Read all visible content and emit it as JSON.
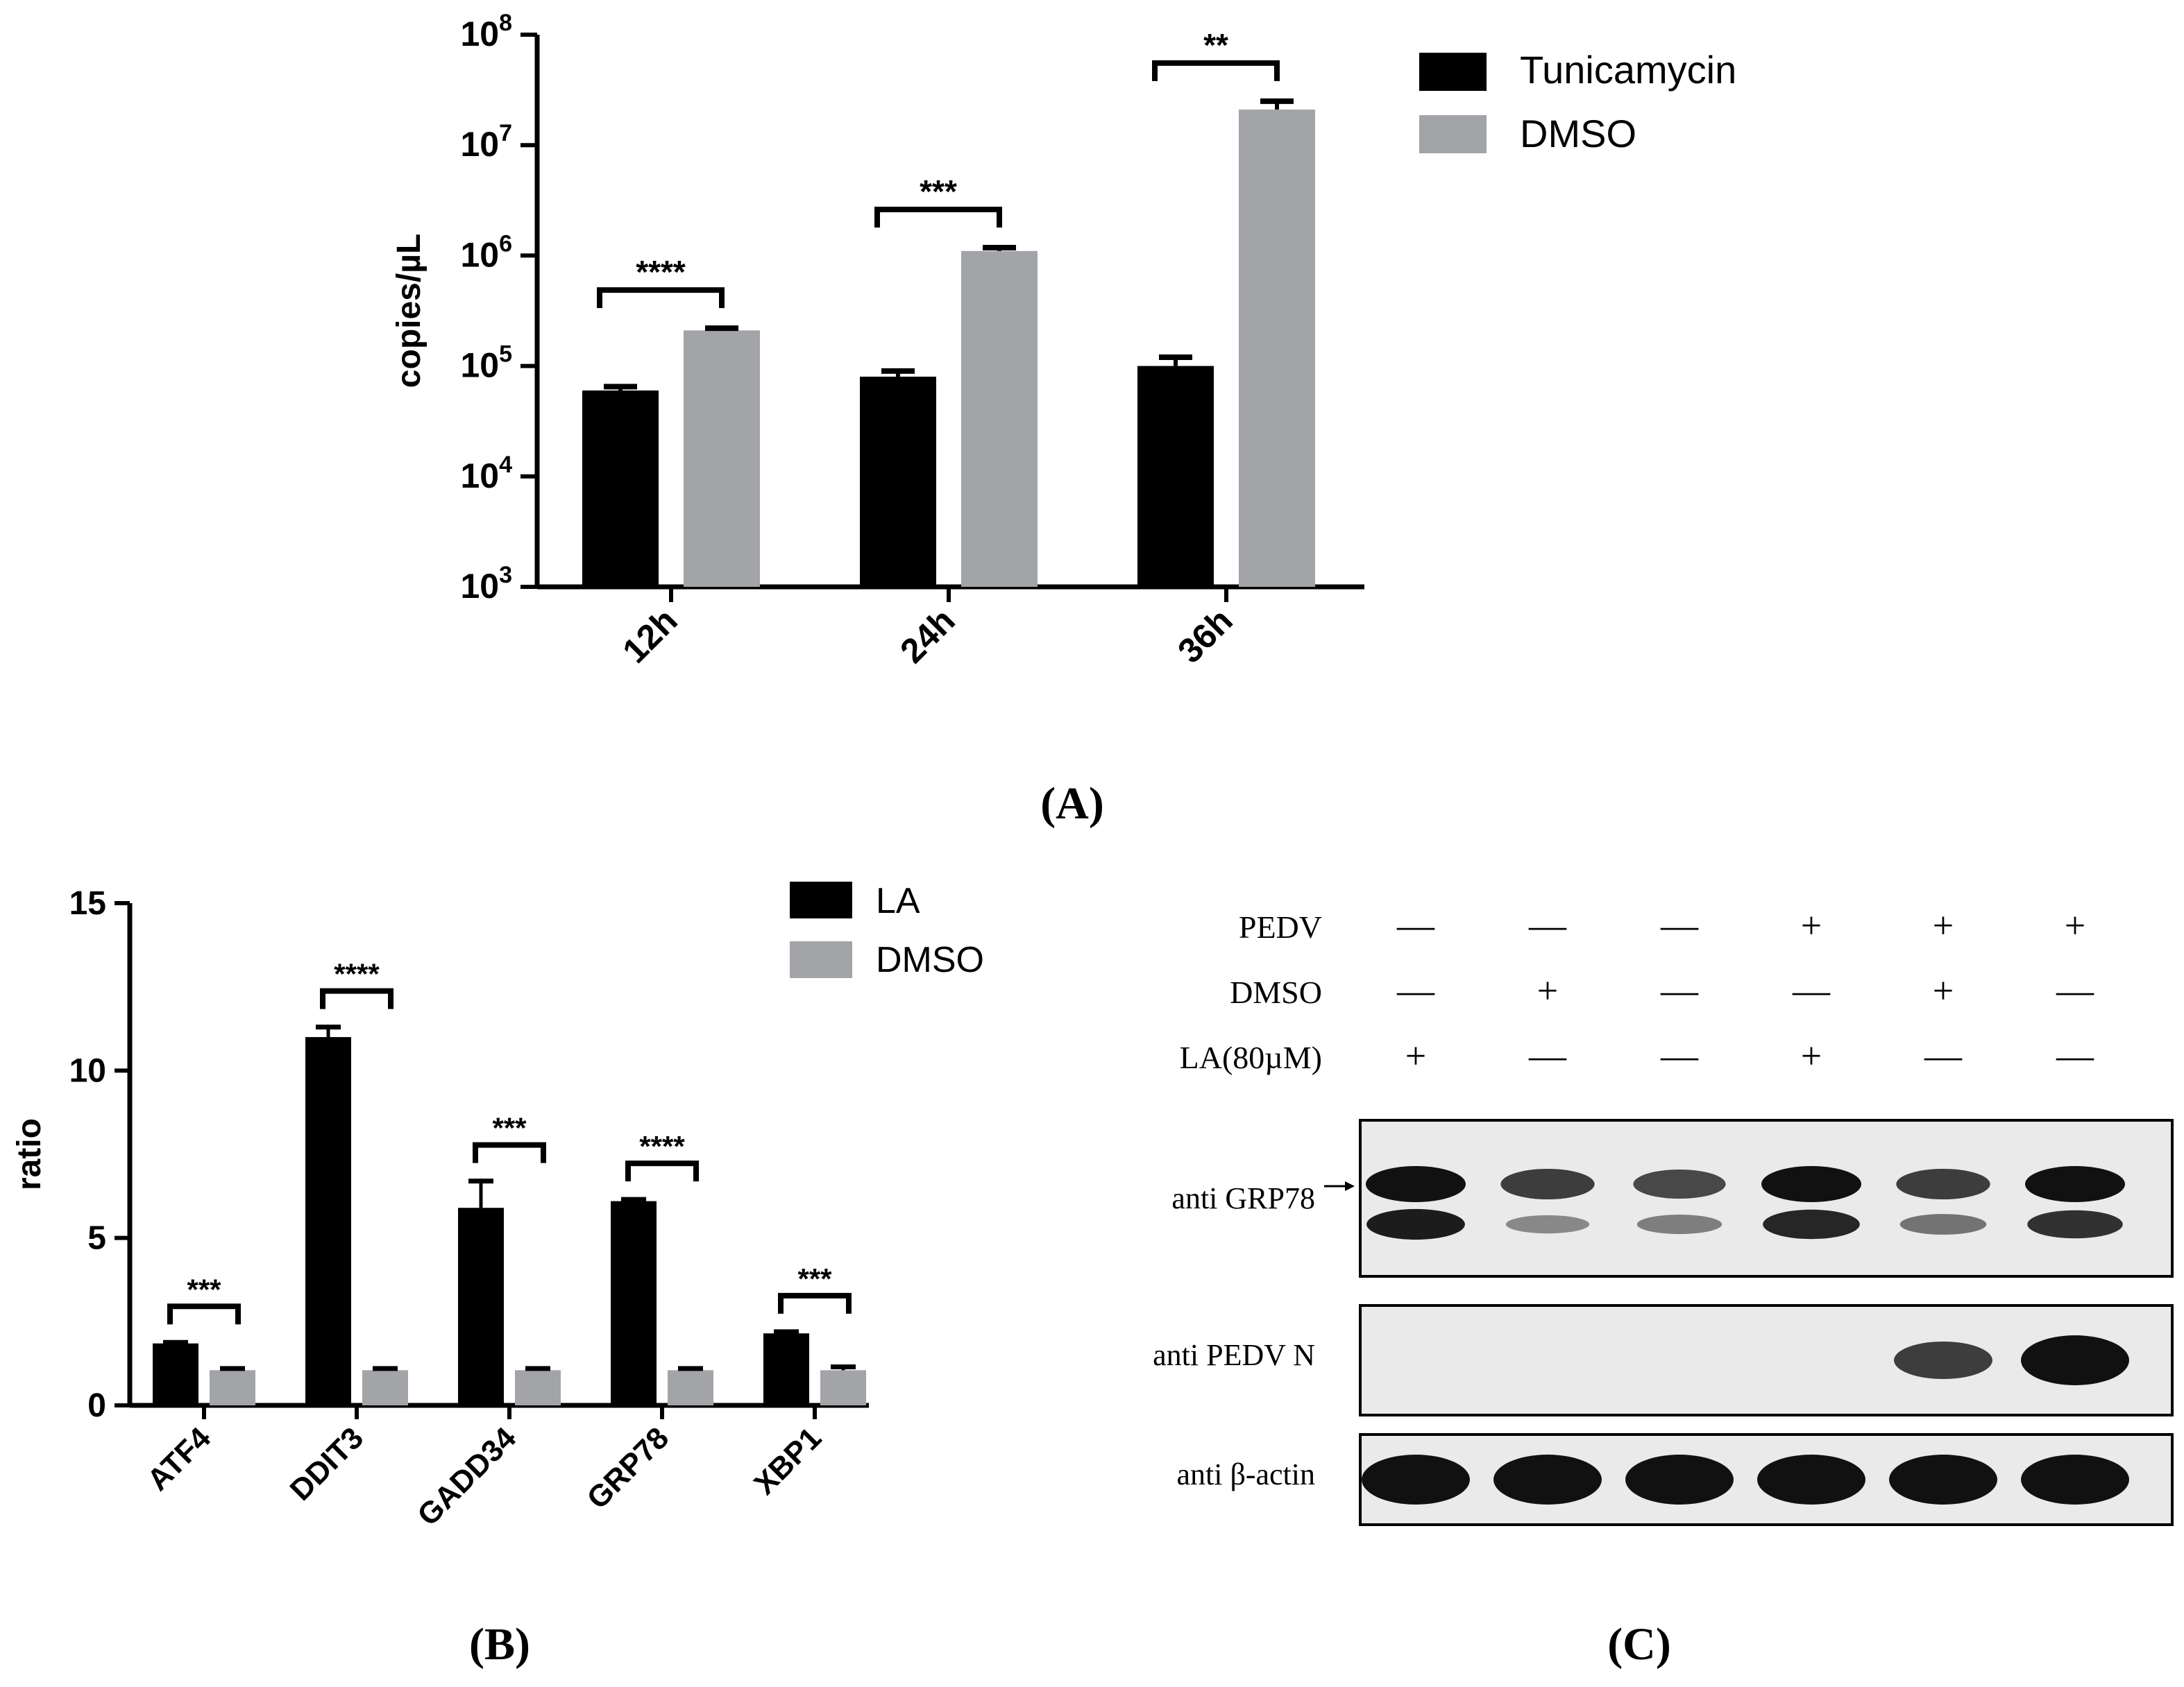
{
  "chart_data": [
    {
      "type": "bar",
      "panel": "A",
      "ylabel": "copies/µL",
      "yscale": "log",
      "ylim": [
        1000,
        100000000
      ],
      "ytick_exponents": [
        "3",
        "4",
        "5",
        "6",
        "7",
        "8"
      ],
      "ytick_base": "10",
      "categories": [
        "12h",
        "24h",
        "36h"
      ],
      "series": [
        {
          "name": "Tunicamycin",
          "color": "#000000",
          "values": [
            60000,
            80000,
            100000
          ],
          "errors": [
            5000,
            10000,
            20000
          ]
        },
        {
          "name": "DMSO",
          "color": "#a3a4a7",
          "values": [
            210000,
            1100000,
            21000000
          ],
          "errors": [
            10000,
            80000,
            4000000
          ]
        }
      ],
      "significance": [
        "****",
        "***",
        "**"
      ],
      "legend_position": "top-right"
    },
    {
      "type": "bar",
      "panel": "B",
      "ylabel": "ratio",
      "ylim": [
        0,
        15
      ],
      "yticks": [
        "0",
        "5",
        "10",
        "15"
      ],
      "categories": [
        "ATF4",
        "DDIT3",
        "GADD34",
        "GRP78",
        "XBP1"
      ],
      "series": [
        {
          "name": "LA",
          "color": "#000000",
          "values": [
            1.85,
            11.0,
            5.9,
            6.1,
            2.15
          ],
          "errors": [
            0.03,
            0.3,
            0.8,
            0.05,
            0.05
          ]
        },
        {
          "name": "DMSO",
          "color": "#a3a4a7",
          "values": [
            1.05,
            1.05,
            1.05,
            1.05,
            1.05
          ],
          "errors": [
            0.05,
            0.05,
            0.05,
            0.05,
            0.1
          ]
        }
      ],
      "significance": [
        "***",
        "****",
        "***",
        "****",
        "***"
      ],
      "legend_position": "top-right"
    }
  ],
  "blot": {
    "conditions": [
      {
        "label": "PEDV",
        "values": [
          "—",
          "—",
          "—",
          "+",
          "+",
          "+"
        ]
      },
      {
        "label": "DMSO",
        "values": [
          "—",
          "+",
          "—",
          "—",
          "+",
          "—"
        ]
      },
      {
        "label": "LA(80µM)",
        "values": [
          "+",
          "—",
          "—",
          "+",
          "—",
          "—"
        ]
      }
    ],
    "rows": [
      {
        "label": "anti GRP78",
        "upper_band": [
          1.0,
          0.8,
          0.75,
          1.0,
          0.8,
          1.0
        ],
        "lower_band": [
          0.95,
          0.45,
          0.5,
          0.9,
          0.55,
          0.85
        ]
      },
      {
        "label": "anti PEDV N",
        "band": [
          0,
          0,
          0,
          0,
          0.7,
          1.0
        ]
      },
      {
        "label": "anti β-actin",
        "band": [
          1.0,
          1.0,
          1.0,
          1.0,
          1.0,
          1.0
        ]
      }
    ]
  },
  "panel_labels": [
    "(A)",
    "(B)",
    "(C)"
  ]
}
